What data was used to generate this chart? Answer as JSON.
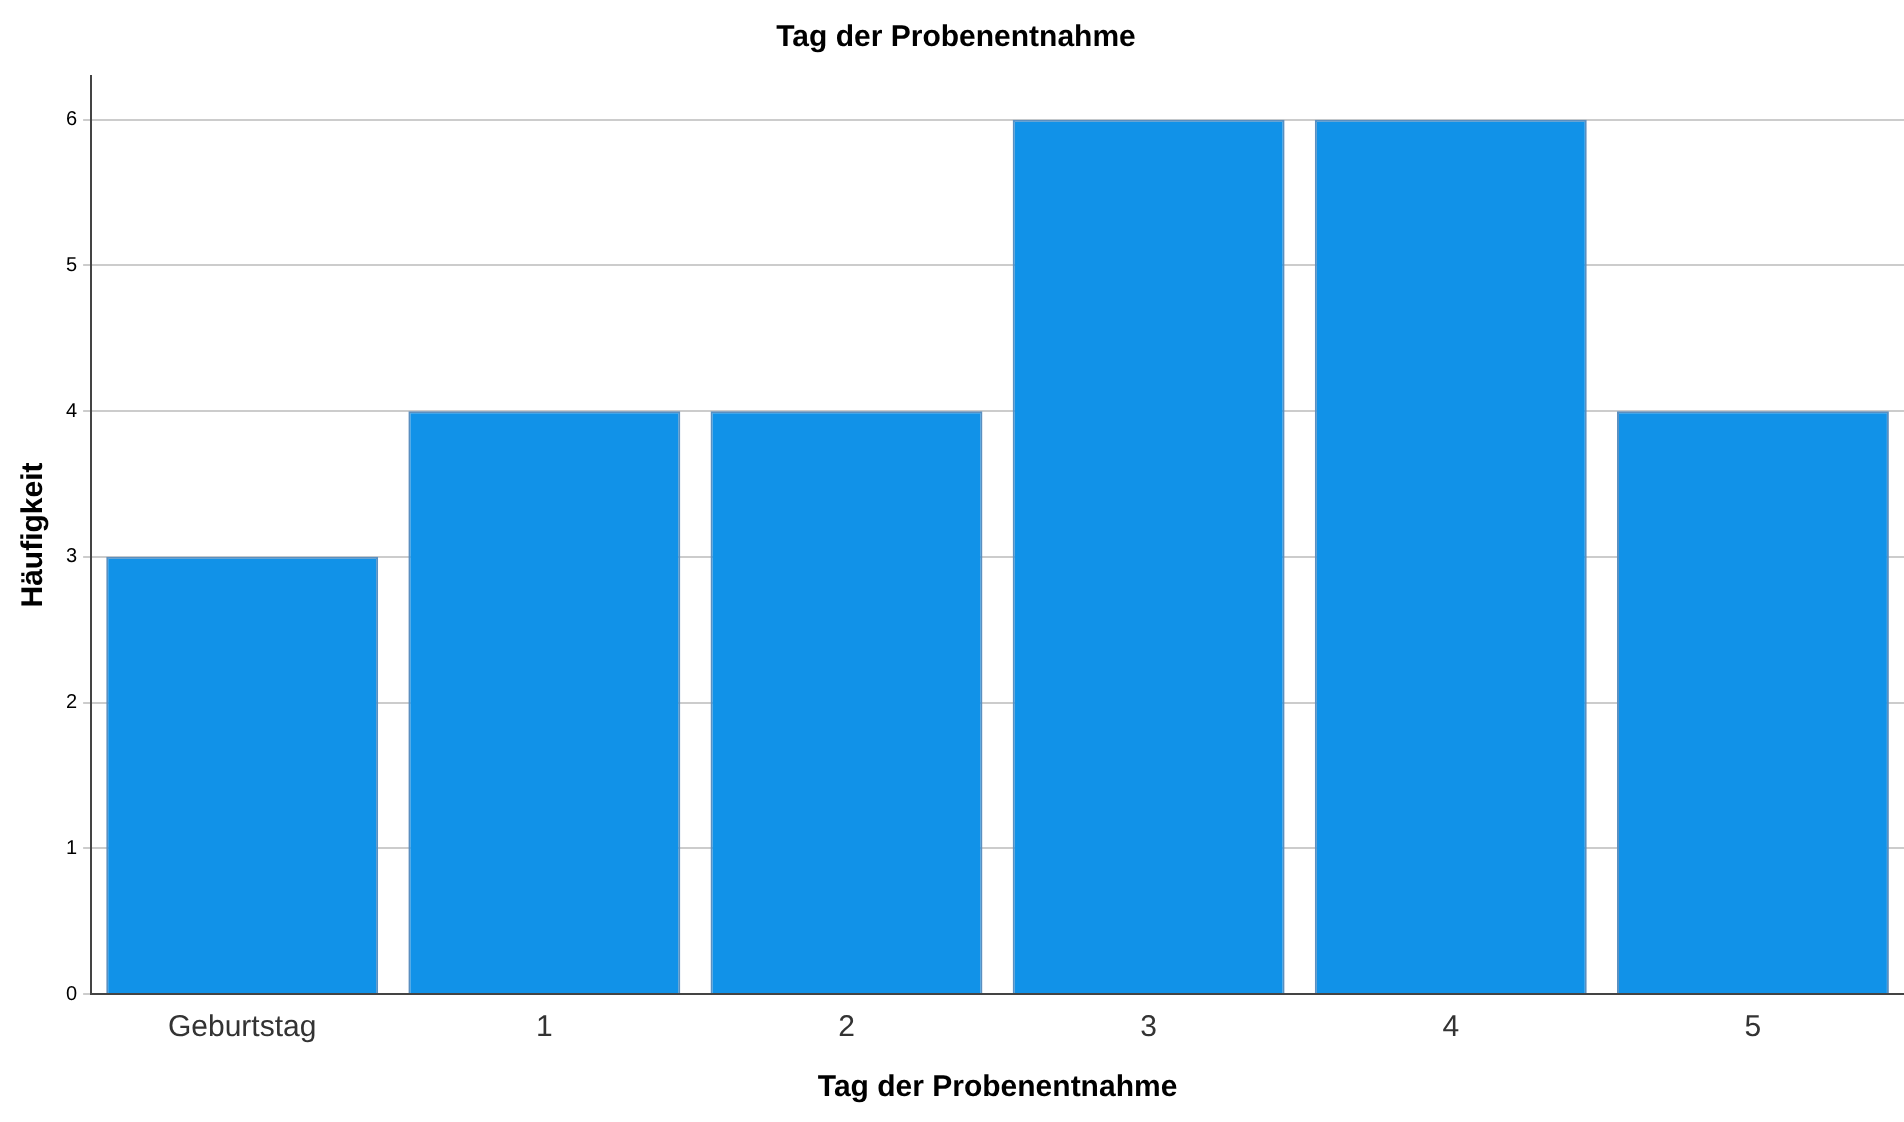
{
  "chart_data": {
    "type": "bar",
    "title": "Tag der Probenentnahme",
    "xlabel": "Tag der Probenentnahme",
    "ylabel": "Häufigkeit",
    "categories": [
      "Geburtstag",
      "1",
      "2",
      "3",
      "4",
      "5"
    ],
    "values": [
      3,
      4,
      4,
      6,
      6,
      4
    ],
    "color": "#1192e8",
    "ylim": [
      0,
      6.3
    ],
    "yticks": [
      0,
      1,
      2,
      3,
      4,
      5,
      6
    ],
    "grid": "y",
    "legend": false
  }
}
